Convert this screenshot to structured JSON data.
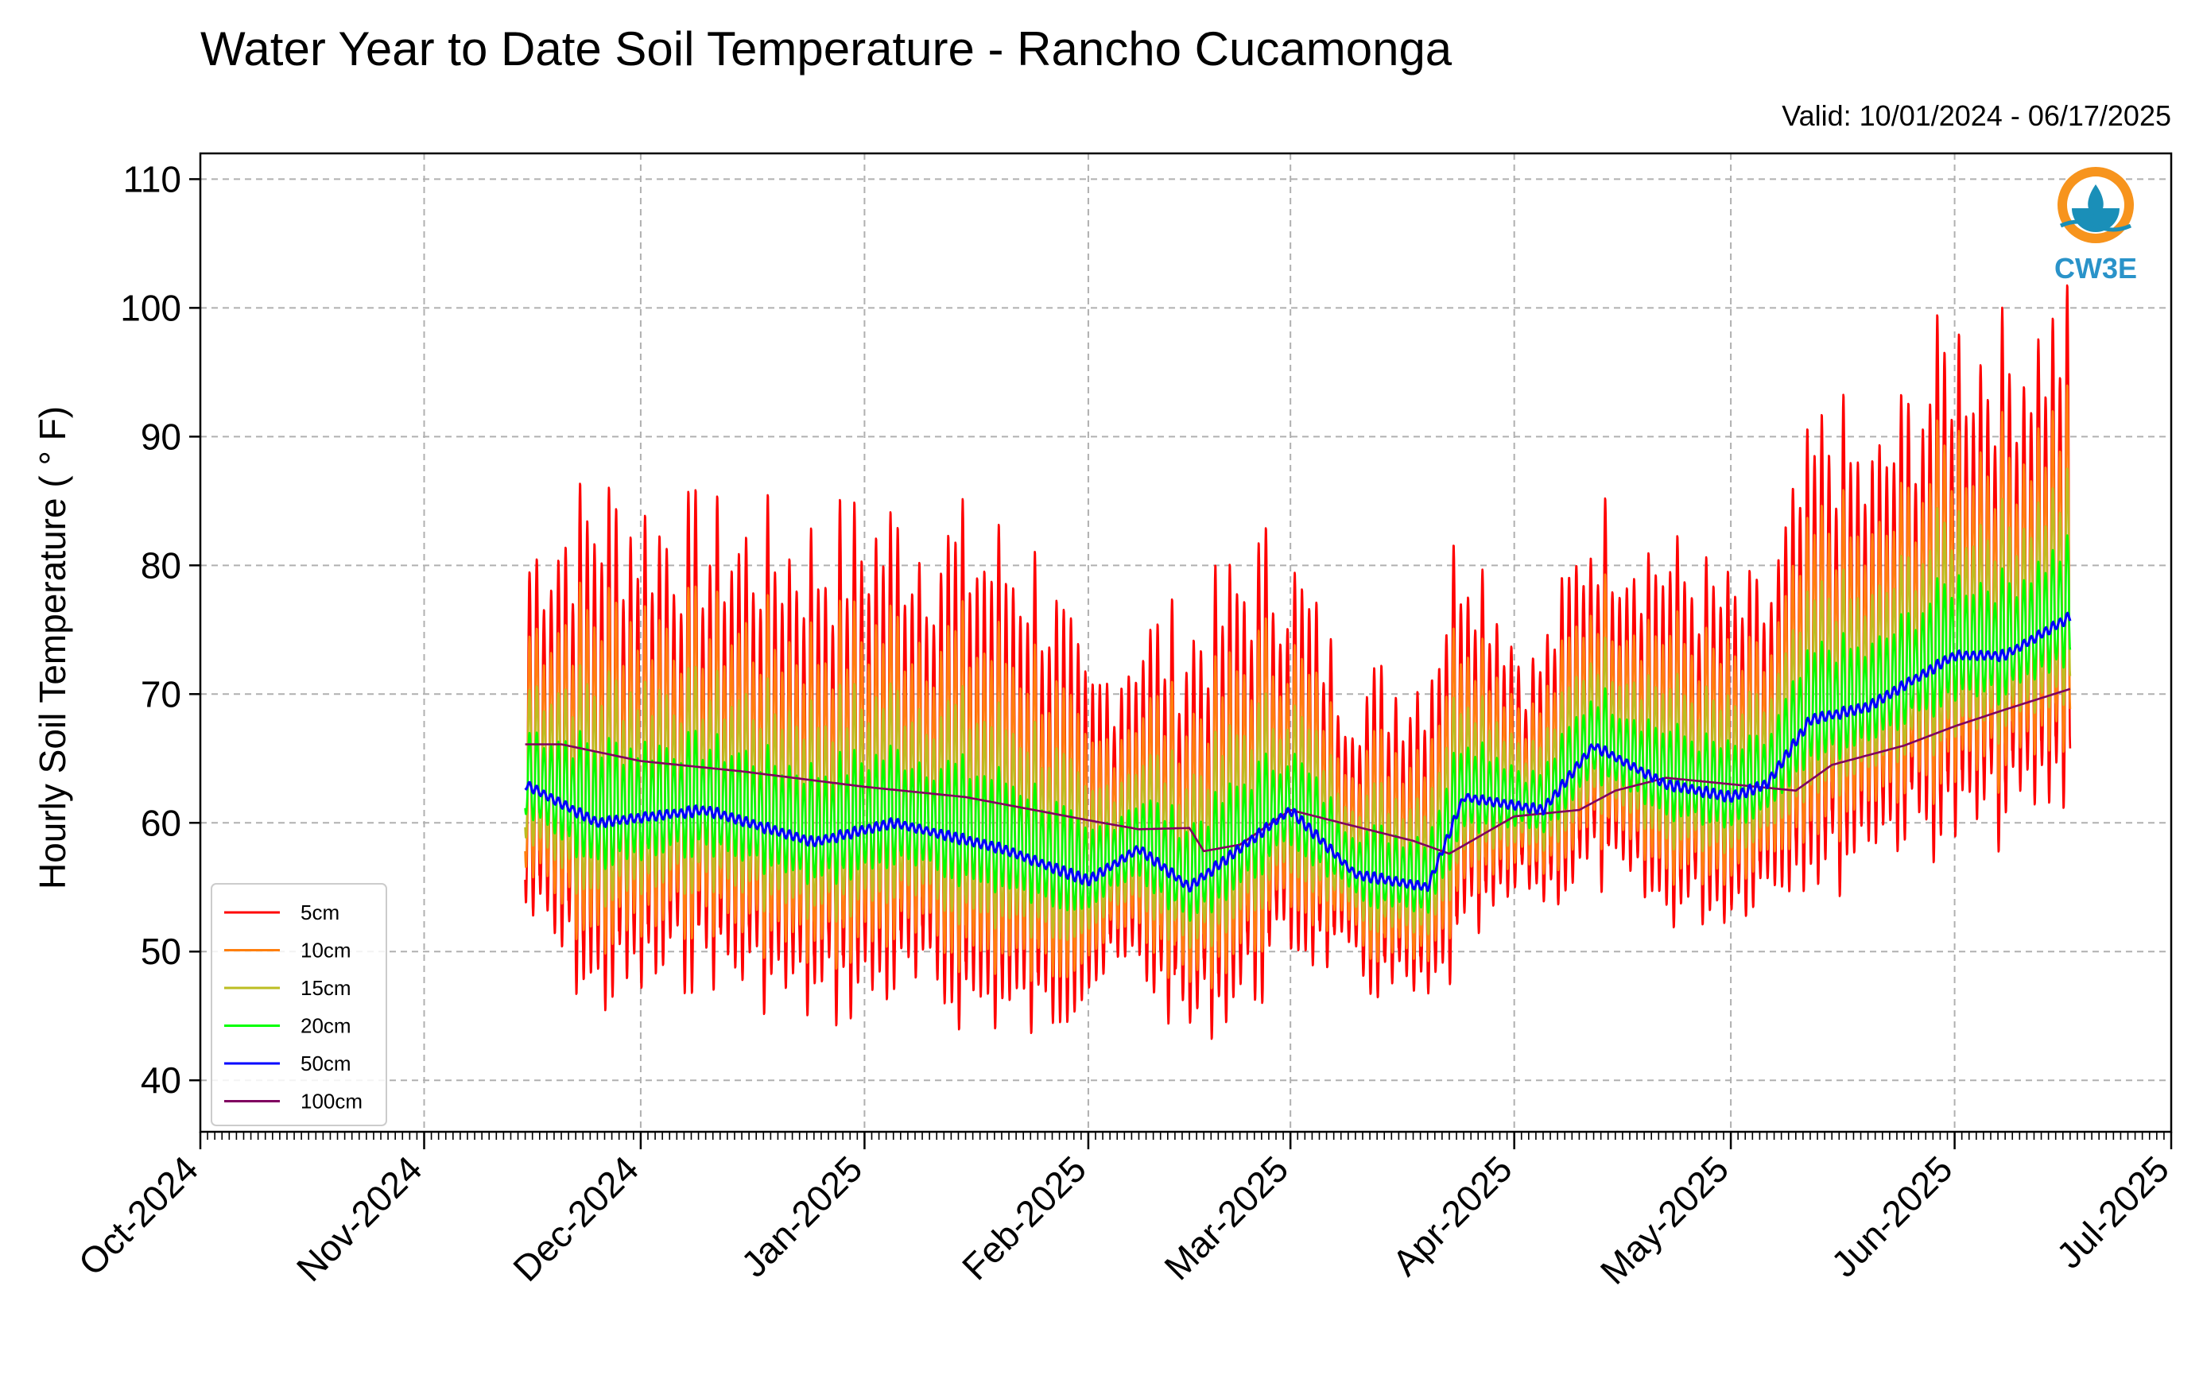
{
  "chart_data": {
    "type": "line",
    "title": "Water Year to Date Soil Temperature - Rancho Cucamonga",
    "subtitle": "Valid: 10/01/2024 - 06/17/2025",
    "ylabel": "Hourly Soil Temperature ( ° F)",
    "xlabel": "",
    "xlim": [
      "2024-10-01",
      "2025-07-01"
    ],
    "ylim": [
      36,
      112
    ],
    "yticks": [
      40,
      50,
      60,
      70,
      80,
      90,
      100,
      110
    ],
    "xticks": [
      {
        "date": "2024-10-01",
        "label": "Oct-2024"
      },
      {
        "date": "2024-11-01",
        "label": "Nov-2024"
      },
      {
        "date": "2024-12-01",
        "label": "Dec-2024"
      },
      {
        "date": "2025-01-01",
        "label": "Jan-2025"
      },
      {
        "date": "2025-02-01",
        "label": "Feb-2025"
      },
      {
        "date": "2025-03-01",
        "label": "Mar-2025"
      },
      {
        "date": "2025-04-01",
        "label": "Apr-2025"
      },
      {
        "date": "2025-05-01",
        "label": "May-2025"
      },
      {
        "date": "2025-06-01",
        "label": "Jun-2025"
      },
      {
        "date": "2025-07-01",
        "label": "Jul-2025"
      }
    ],
    "grid": true,
    "legend_position": "lower-left",
    "logo_text": "CW3E",
    "record_start": "2024-11-15",
    "record_end": "2025-06-17",
    "daily_mean_baseline": [
      [
        "2024-11-15",
        63
      ],
      [
        "2024-11-25",
        60
      ],
      [
        "2024-12-10",
        61
      ],
      [
        "2024-12-25",
        58.5
      ],
      [
        "2025-01-05",
        60
      ],
      [
        "2025-01-20",
        58
      ],
      [
        "2025-02-01",
        55.5
      ],
      [
        "2025-02-08",
        58
      ],
      [
        "2025-02-15",
        55
      ],
      [
        "2025-03-01",
        61
      ],
      [
        "2025-03-10",
        56
      ],
      [
        "2025-03-20",
        55
      ],
      [
        "2025-03-25",
        62
      ],
      [
        "2025-04-05",
        61
      ],
      [
        "2025-04-12",
        66
      ],
      [
        "2025-04-22",
        63
      ],
      [
        "2025-05-01",
        62
      ],
      [
        "2025-05-06",
        63
      ],
      [
        "2025-05-12",
        68
      ],
      [
        "2025-05-20",
        69
      ],
      [
        "2025-06-01",
        73
      ],
      [
        "2025-06-08",
        73
      ],
      [
        "2025-06-17",
        76
      ]
    ],
    "daily_amplitude_5cm": [
      [
        "2024-11-15",
        10
      ],
      [
        "2024-11-25",
        14
      ],
      [
        "2024-12-10",
        12
      ],
      [
        "2024-12-25",
        13
      ],
      [
        "2025-01-10",
        13
      ],
      [
        "2025-01-25",
        13
      ],
      [
        "2025-02-01",
        8
      ],
      [
        "2025-02-15",
        11
      ],
      [
        "2025-02-25",
        12
      ],
      [
        "2025-03-08",
        8
      ],
      [
        "2025-03-18",
        9
      ],
      [
        "2025-03-25",
        12
      ],
      [
        "2025-04-03",
        6
      ],
      [
        "2025-04-12",
        10
      ],
      [
        "2025-04-22",
        10
      ],
      [
        "2025-05-06",
        8
      ],
      [
        "2025-05-15",
        13
      ],
      [
        "2025-05-20",
        10
      ],
      [
        "2025-06-01",
        14
      ],
      [
        "2025-06-10",
        13
      ],
      [
        "2025-06-17",
        13
      ]
    ],
    "series": [
      {
        "name": "5cm",
        "color": "#ff0000",
        "depth_factor": 1.0,
        "smooth_days": 0
      },
      {
        "name": "10cm",
        "color": "#ff7f0e",
        "depth_factor": 0.7,
        "smooth_days": 0
      },
      {
        "name": "15cm",
        "color": "#bcbd22",
        "depth_factor": 0.45,
        "smooth_days": 0
      },
      {
        "name": "20cm",
        "color": "#00ff00",
        "depth_factor": 0.25,
        "smooth_days": 0
      },
      {
        "name": "50cm",
        "color": "#0000ff",
        "depth_factor": 0.0,
        "smooth_days": 2
      },
      {
        "name": "100cm",
        "color": "#800060",
        "depth_factor": 0.0,
        "smooth_days": 0,
        "points": [
          [
            "2024-11-15",
            66.1
          ],
          [
            "2024-11-20",
            66.1
          ],
          [
            "2024-12-01",
            64.8
          ],
          [
            "2024-12-15",
            64.0
          ],
          [
            "2025-01-01",
            62.8
          ],
          [
            "2025-01-15",
            62.0
          ],
          [
            "2025-02-01",
            60.2
          ],
          [
            "2025-02-08",
            59.5
          ],
          [
            "2025-02-15",
            59.6
          ],
          [
            "2025-02-17",
            57.8
          ],
          [
            "2025-02-22",
            58.3
          ],
          [
            "2025-03-01",
            61.0
          ],
          [
            "2025-03-08",
            60.0
          ],
          [
            "2025-03-18",
            58.6
          ],
          [
            "2025-03-23",
            57.6
          ],
          [
            "2025-04-01",
            60.5
          ],
          [
            "2025-04-10",
            61.0
          ],
          [
            "2025-04-15",
            62.5
          ],
          [
            "2025-04-22",
            63.5
          ],
          [
            "2025-05-01",
            63.0
          ],
          [
            "2025-05-10",
            62.5
          ],
          [
            "2025-05-15",
            64.5
          ],
          [
            "2025-05-25",
            66.0
          ],
          [
            "2025-06-01",
            67.5
          ],
          [
            "2025-06-08",
            68.8
          ],
          [
            "2025-06-17",
            70.4
          ]
        ]
      }
    ],
    "peak_5cm_max": 103.5,
    "min_5cm": 39.6
  }
}
